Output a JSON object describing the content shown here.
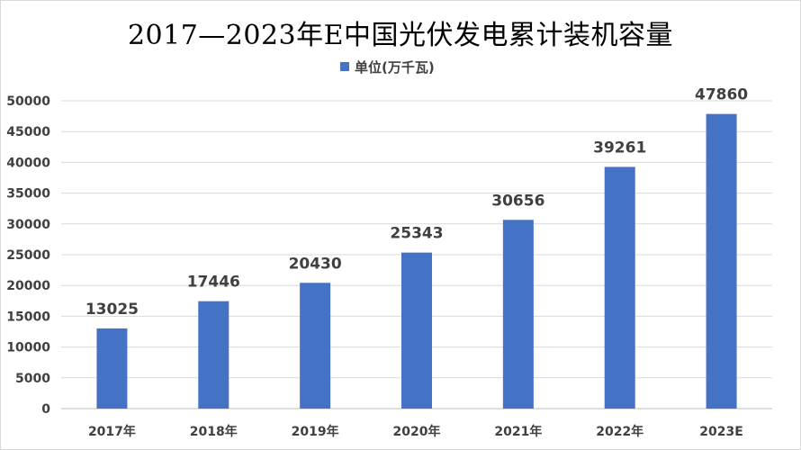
{
  "chart_data": {
    "type": "bar",
    "title": "2017—2023年E中国光伏发电累计装机容量",
    "xlabel": "",
    "ylabel": "",
    "categories": [
      "2017年",
      "2018年",
      "2019年",
      "2020年",
      "2021年",
      "2022年",
      "2023E"
    ],
    "series": [
      {
        "name": "单位(万千瓦)",
        "values": [
          13025,
          17446,
          20430,
          25343,
          30656,
          39261,
          47860
        ],
        "color": "#4472c4"
      }
    ],
    "ylim": [
      0,
      50000
    ],
    "yticks": [
      0,
      5000,
      10000,
      15000,
      20000,
      25000,
      30000,
      35000,
      40000,
      45000,
      50000
    ],
    "grid": true,
    "legend_position": "top-center",
    "data_labels": true
  }
}
